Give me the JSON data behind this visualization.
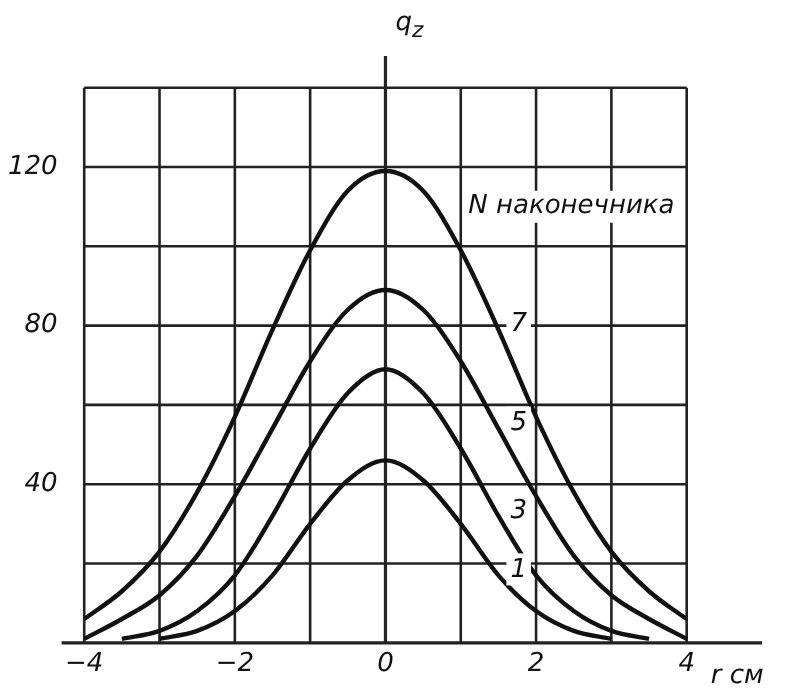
{
  "chart_data": {
    "type": "line",
    "xlabel": "r см",
    "ylabel": "q$_{z}$",
    "x": [
      -4,
      -3.5,
      -3,
      -2.5,
      -2,
      -1.5,
      -1,
      -0.5,
      0,
      0.5,
      1,
      1.5,
      2,
      2.5,
      3,
      3.5,
      4
    ],
    "series": [
      {
        "name": "1",
        "color": "#111111",
        "values": [
          null,
          null,
          1,
          3,
          8,
          17,
          30,
          41,
          46,
          41,
          30,
          17,
          8,
          3,
          1,
          null,
          null
        ]
      },
      {
        "name": "3",
        "color": "#111111",
        "values": [
          null,
          1,
          3,
          8,
          17,
          32,
          49,
          63,
          69,
          63,
          49,
          32,
          17,
          8,
          3,
          1,
          null
        ]
      },
      {
        "name": "5",
        "color": "#111111",
        "values": [
          1,
          6,
          12,
          22,
          37,
          54,
          71,
          84,
          89,
          84,
          71,
          54,
          37,
          22,
          12,
          6,
          1
        ]
      },
      {
        "name": "7",
        "color": "#111111",
        "values": [
          6,
          13,
          23,
          38,
          57,
          79,
          99,
          114,
          119,
          114,
          99,
          79,
          57,
          38,
          23,
          13,
          6
        ]
      }
    ],
    "annotations": [
      "N наконечника"
    ],
    "xlim": [
      -4.3,
      5
    ],
    "ylim": [
      0,
      148
    ],
    "xticks": [
      -4,
      {
        "value": -3,
        "label": null
      },
      -2,
      {
        "value": -1,
        "label": null
      },
      0,
      {
        "value": 1,
        "label": null
      },
      2,
      {
        "value": 3,
        "label": null
      },
      4
    ],
    "yticks": [
      {
        "value": 20,
        "label": null
      },
      40,
      {
        "value": 60,
        "label": null
      },
      80,
      {
        "value": 100,
        "label": null
      },
      120,
      {
        "value": 140,
        "label": null
      }
    ],
    "grid": true,
    "legend": false,
    "marker": "none",
    "line_style": "solid"
  }
}
